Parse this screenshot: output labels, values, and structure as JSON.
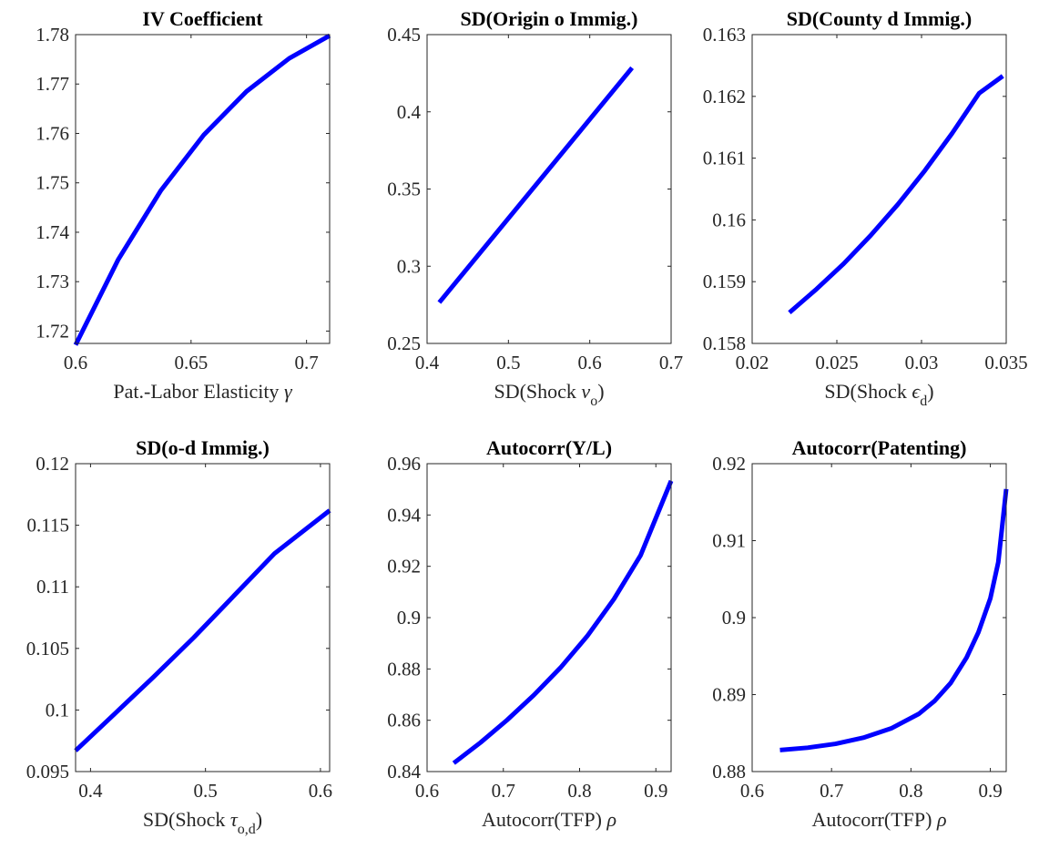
{
  "line_color": "#0000ff",
  "axis_color": "#262626",
  "chart_data": [
    {
      "type": "line",
      "title": "IV Coefficient",
      "xlabel": [
        {
          "t": "Pat.-Labor Elasticity "
        },
        {
          "t": "γ",
          "style": "italic"
        }
      ],
      "xlim": [
        0.6,
        0.71
      ],
      "ylim": [
        1.7175,
        1.78
      ],
      "xticks": [
        {
          "v": 0.6,
          "label": "0.6"
        },
        {
          "v": 0.65,
          "label": "0.65"
        },
        {
          "v": 0.7,
          "label": "0.7"
        }
      ],
      "yticks": [
        {
          "v": 1.72,
          "label": "1.72"
        },
        {
          "v": 1.73,
          "label": "1.73"
        },
        {
          "v": 1.74,
          "label": "1.74"
        },
        {
          "v": 1.75,
          "label": "1.75"
        },
        {
          "v": 1.76,
          "label": "1.76"
        },
        {
          "v": 1.77,
          "label": "1.77"
        },
        {
          "v": 1.78,
          "label": "1.78"
        }
      ],
      "x": [
        0.6,
        0.6185,
        0.637,
        0.6555,
        0.674,
        0.6925,
        0.71
      ],
      "y": [
        1.7172,
        1.7345,
        1.7485,
        1.7597,
        1.7685,
        1.7752,
        1.7798
      ]
    },
    {
      "type": "line",
      "title": "SD(Origin o Immig.)",
      "xlabel": [
        {
          "t": "SD(Shock "
        },
        {
          "t": "ν",
          "style": "italic"
        },
        {
          "t": "o",
          "style": "sub"
        },
        {
          "t": ")"
        }
      ],
      "xlim": [
        0.4,
        0.7
      ],
      "ylim": [
        0.25,
        0.45
      ],
      "xticks": [
        {
          "v": 0.4,
          "label": "0.4"
        },
        {
          "v": 0.5,
          "label": "0.5"
        },
        {
          "v": 0.6,
          "label": "0.6"
        },
        {
          "v": 0.7,
          "label": "0.7"
        }
      ],
      "yticks": [
        {
          "v": 0.25,
          "label": "0.25"
        },
        {
          "v": 0.3,
          "label": "0.3"
        },
        {
          "v": 0.35,
          "label": "0.35"
        },
        {
          "v": 0.4,
          "label": "0.4"
        },
        {
          "v": 0.45,
          "label": "0.45"
        }
      ],
      "x": [
        0.415,
        0.652
      ],
      "y": [
        0.2765,
        0.4285
      ]
    },
    {
      "type": "line",
      "title": "SD(County d Immig.)",
      "xlabel": [
        {
          "t": "SD(Shock "
        },
        {
          "t": "ϵ",
          "style": "italic"
        },
        {
          "t": "d",
          "style": "sub"
        },
        {
          "t": ")"
        }
      ],
      "xlim": [
        0.02,
        0.035
      ],
      "ylim": [
        0.158,
        0.163
      ],
      "xticks": [
        {
          "v": 0.02,
          "label": "0.02"
        },
        {
          "v": 0.025,
          "label": "0.025"
        },
        {
          "v": 0.03,
          "label": "0.03"
        },
        {
          "v": 0.035,
          "label": "0.035"
        }
      ],
      "yticks": [
        {
          "v": 0.158,
          "label": "0.158"
        },
        {
          "v": 0.159,
          "label": "0.159"
        },
        {
          "v": 0.16,
          "label": "0.16"
        },
        {
          "v": 0.161,
          "label": "0.161"
        },
        {
          "v": 0.162,
          "label": "0.162"
        },
        {
          "v": 0.163,
          "label": "0.163"
        }
      ],
      "x": [
        0.0222,
        0.0238,
        0.0254,
        0.027,
        0.0286,
        0.0302,
        0.0318,
        0.0334,
        0.0348
      ],
      "y": [
        0.1585,
        0.15888,
        0.15929,
        0.15975,
        0.16025,
        0.1608,
        0.1614,
        0.16205,
        0.16233
      ]
    },
    {
      "type": "line",
      "title": "SD(o-d Immig.)",
      "xlabel": [
        {
          "t": "SD(Shock "
        },
        {
          "t": "τ",
          "style": "italic"
        },
        {
          "t": "o,d",
          "style": "sub"
        },
        {
          "t": ")"
        }
      ],
      "xlim": [
        0.387,
        0.608
      ],
      "ylim": [
        0.095,
        0.12
      ],
      "xticks": [
        {
          "v": 0.4,
          "label": "0.4"
        },
        {
          "v": 0.5,
          "label": "0.5"
        },
        {
          "v": 0.6,
          "label": "0.6"
        }
      ],
      "yticks": [
        {
          "v": 0.095,
          "label": "0.095"
        },
        {
          "v": 0.1,
          "label": "0.1"
        },
        {
          "v": 0.105,
          "label": "0.105"
        },
        {
          "v": 0.11,
          "label": "0.11"
        },
        {
          "v": 0.115,
          "label": "0.115"
        },
        {
          "v": 0.12,
          "label": "0.12"
        }
      ],
      "x": [
        0.387,
        0.42,
        0.455,
        0.49,
        0.525,
        0.56,
        0.608
      ],
      "y": [
        0.0967,
        0.0996,
        0.1027,
        0.1059,
        0.1093,
        0.1127,
        0.1162
      ]
    },
    {
      "type": "line",
      "title": "Autocorr(Y/L)",
      "xlabel": [
        {
          "t": "Autocorr(TFP) "
        },
        {
          "t": "ρ",
          "style": "italic"
        }
      ],
      "xlim": [
        0.6,
        0.92
      ],
      "ylim": [
        0.84,
        0.96
      ],
      "xticks": [
        {
          "v": 0.6,
          "label": "0.6"
        },
        {
          "v": 0.7,
          "label": "0.7"
        },
        {
          "v": 0.8,
          "label": "0.8"
        },
        {
          "v": 0.9,
          "label": "0.9"
        }
      ],
      "yticks": [
        {
          "v": 0.84,
          "label": "0.84"
        },
        {
          "v": 0.86,
          "label": "0.86"
        },
        {
          "v": 0.88,
          "label": "0.88"
        },
        {
          "v": 0.9,
          "label": "0.9"
        },
        {
          "v": 0.92,
          "label": "0.92"
        },
        {
          "v": 0.94,
          "label": "0.94"
        },
        {
          "v": 0.96,
          "label": "0.96"
        }
      ],
      "x": [
        0.635,
        0.67,
        0.705,
        0.74,
        0.775,
        0.81,
        0.845,
        0.88,
        0.92
      ],
      "y": [
        0.8433,
        0.8513,
        0.8601,
        0.8698,
        0.8805,
        0.8928,
        0.9072,
        0.9243,
        0.9533
      ]
    },
    {
      "type": "line",
      "title": "Autocorr(Patenting)",
      "xlabel": [
        {
          "t": "Autocorr(TFP) "
        },
        {
          "t": "ρ",
          "style": "italic"
        }
      ],
      "xlim": [
        0.6,
        0.92
      ],
      "ylim": [
        0.88,
        0.92
      ],
      "xticks": [
        {
          "v": 0.6,
          "label": "0.6"
        },
        {
          "v": 0.7,
          "label": "0.7"
        },
        {
          "v": 0.8,
          "label": "0.8"
        },
        {
          "v": 0.9,
          "label": "0.9"
        }
      ],
      "yticks": [
        {
          "v": 0.88,
          "label": "0.88"
        },
        {
          "v": 0.89,
          "label": "0.89"
        },
        {
          "v": 0.9,
          "label": "0.9"
        },
        {
          "v": 0.91,
          "label": "0.91"
        },
        {
          "v": 0.92,
          "label": "0.92"
        }
      ],
      "x": [
        0.635,
        0.67,
        0.705,
        0.74,
        0.775,
        0.81,
        0.83,
        0.85,
        0.87,
        0.885,
        0.9,
        0.91,
        0.92
      ],
      "y": [
        0.8828,
        0.8831,
        0.8836,
        0.8844,
        0.8856,
        0.8875,
        0.8892,
        0.8915,
        0.8948,
        0.8981,
        0.9025,
        0.9072,
        0.9167
      ]
    }
  ]
}
